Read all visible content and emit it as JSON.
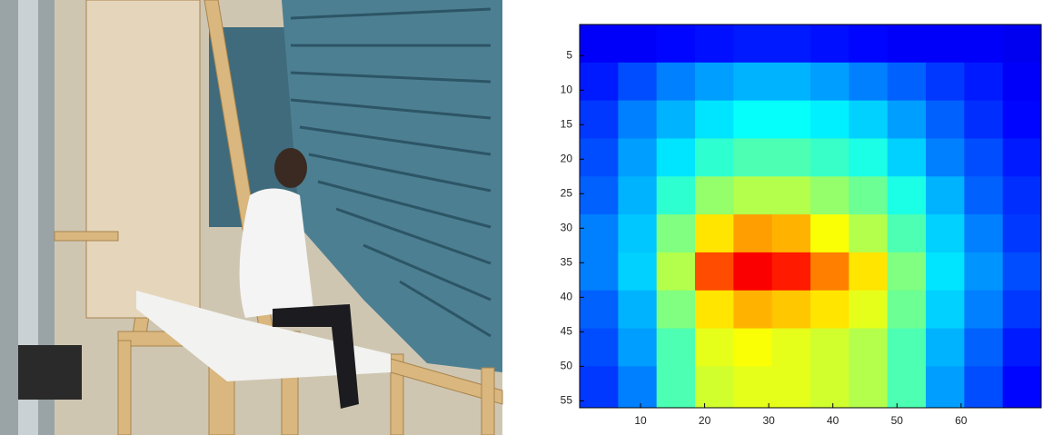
{
  "chart_data": {
    "type": "heatmap",
    "xlim": [
      0.5,
      72.5
    ],
    "ylim": [
      0.5,
      56
    ],
    "y_reversed": true,
    "xticks": [
      10,
      20,
      30,
      40,
      50,
      60
    ],
    "yticks": [
      5,
      10,
      15,
      20,
      25,
      30,
      35,
      40,
      45,
      50,
      55
    ],
    "colormap": "jet",
    "clim": [
      0,
      1
    ],
    "x_edges": [
      0.5,
      6.5,
      12.5,
      18.5,
      24.5,
      30.5,
      36.5,
      42.5,
      48.5,
      54.5,
      60.5,
      66.5,
      72.5
    ],
    "y_edges": [
      0.5,
      6,
      11.5,
      17,
      22.5,
      28,
      33.5,
      39,
      44.5,
      50,
      56
    ],
    "z": [
      [
        0.12,
        0.12,
        0.13,
        0.14,
        0.15,
        0.15,
        0.14,
        0.13,
        0.12,
        0.12,
        0.12,
        0.11
      ],
      [
        0.15,
        0.2,
        0.25,
        0.28,
        0.3,
        0.3,
        0.28,
        0.25,
        0.22,
        0.18,
        0.15,
        0.12
      ],
      [
        0.18,
        0.25,
        0.3,
        0.35,
        0.38,
        0.38,
        0.36,
        0.33,
        0.28,
        0.22,
        0.17,
        0.13
      ],
      [
        0.2,
        0.28,
        0.35,
        0.42,
        0.45,
        0.45,
        0.43,
        0.4,
        0.33,
        0.25,
        0.2,
        0.15
      ],
      [
        0.22,
        0.3,
        0.42,
        0.52,
        0.55,
        0.55,
        0.52,
        0.48,
        0.4,
        0.3,
        0.22,
        0.17
      ],
      [
        0.25,
        0.32,
        0.5,
        0.65,
        0.72,
        0.7,
        0.62,
        0.55,
        0.45,
        0.33,
        0.25,
        0.18
      ],
      [
        0.25,
        0.33,
        0.55,
        0.8,
        0.88,
        0.85,
        0.75,
        0.65,
        0.5,
        0.35,
        0.27,
        0.2
      ],
      [
        0.22,
        0.3,
        0.5,
        0.65,
        0.7,
        0.68,
        0.65,
        0.6,
        0.48,
        0.33,
        0.25,
        0.18
      ],
      [
        0.2,
        0.28,
        0.45,
        0.6,
        0.62,
        0.6,
        0.58,
        0.55,
        0.45,
        0.3,
        0.22,
        0.15
      ],
      [
        0.18,
        0.25,
        0.45,
        0.58,
        0.6,
        0.6,
        0.58,
        0.55,
        0.45,
        0.28,
        0.2,
        0.13
      ]
    ]
  }
}
